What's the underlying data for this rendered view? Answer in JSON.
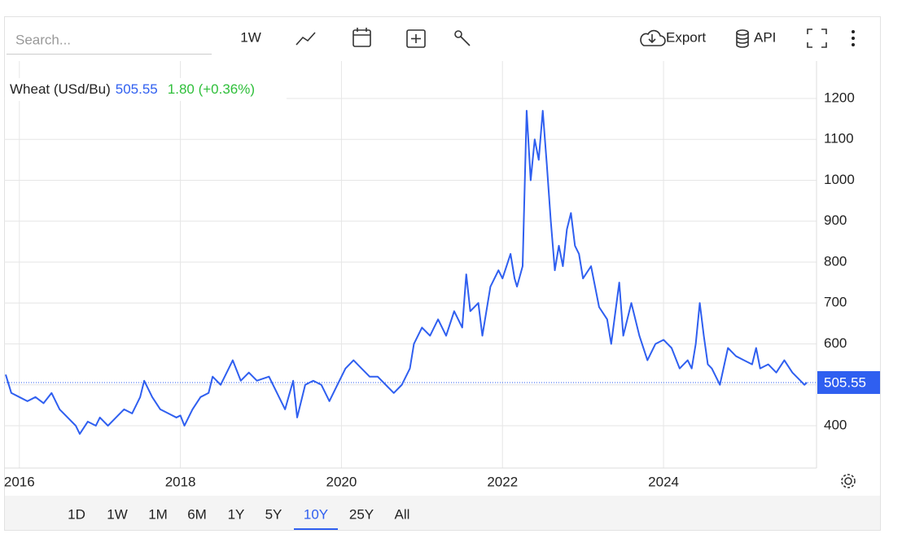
{
  "toolbar": {
    "search_placeholder": "Search...",
    "interval": "1W",
    "export": "Export",
    "api": "API"
  },
  "range_buttons": [
    "1D",
    "1W",
    "1M",
    "6M",
    "1Y",
    "5Y",
    "10Y",
    "25Y",
    "All"
  ],
  "active_range": "10Y",
  "chart_data": {
    "type": "line",
    "last_value": 505.55,
    "change_label": "1.80 (+0.36%)",
    "change_color": "#2fbf3a",
    "x": [
      2015.83,
      2015.9,
      2016.0,
      2016.1,
      2016.2,
      2016.3,
      2016.4,
      2016.5,
      2016.6,
      2016.7,
      2016.75,
      2016.85,
      2016.95,
      2017.0,
      2017.1,
      2017.2,
      2017.3,
      2017.4,
      2017.5,
      2017.55,
      2017.65,
      2017.75,
      2017.85,
      2017.95,
      2018.0,
      2018.05,
      2018.15,
      2018.25,
      2018.35,
      2018.4,
      2018.5,
      2018.6,
      2018.65,
      2018.75,
      2018.85,
      2018.95,
      2019.1,
      2019.2,
      2019.3,
      2019.4,
      2019.45,
      2019.55,
      2019.65,
      2019.75,
      2019.85,
      2019.95,
      2020.05,
      2020.15,
      2020.25,
      2020.35,
      2020.45,
      2020.55,
      2020.65,
      2020.75,
      2020.85,
      2020.9,
      2021.0,
      2021.1,
      2021.2,
      2021.3,
      2021.4,
      2021.5,
      2021.55,
      2021.6,
      2021.7,
      2021.75,
      2021.85,
      2021.95,
      2022.0,
      2022.1,
      2022.15,
      2022.18,
      2022.25,
      2022.3,
      2022.35,
      2022.4,
      2022.45,
      2022.5,
      2022.55,
      2022.6,
      2022.65,
      2022.7,
      2022.75,
      2022.8,
      2022.85,
      2022.9,
      2022.95,
      2023.0,
      2023.1,
      2023.2,
      2023.3,
      2023.35,
      2023.45,
      2023.5,
      2023.6,
      2023.7,
      2023.8,
      2023.9,
      2024.0,
      2024.1,
      2024.2,
      2024.3,
      2024.35,
      2024.4,
      2024.45,
      2024.5,
      2024.55,
      2024.6,
      2024.65,
      2024.7,
      2024.8,
      2024.9,
      2025.0,
      2025.1,
      2025.15,
      2025.2,
      2025.3,
      2025.4,
      2025.5,
      2025.6,
      2025.7,
      2025.75,
      2025.78
    ],
    "series": [
      {
        "name": "Wheat (USd/Bu)",
        "color": "#2f5ff0",
        "values": [
          525,
          480,
          470,
          460,
          470,
          455,
          480,
          440,
          420,
          400,
          380,
          410,
          400,
          420,
          400,
          420,
          440,
          430,
          470,
          510,
          470,
          440,
          430,
          420,
          425,
          400,
          440,
          470,
          480,
          520,
          500,
          540,
          560,
          510,
          530,
          510,
          520,
          480,
          440,
          510,
          420,
          500,
          510,
          500,
          460,
          500,
          540,
          560,
          540,
          520,
          520,
          500,
          480,
          500,
          540,
          600,
          640,
          620,
          660,
          620,
          680,
          640,
          770,
          680,
          700,
          620,
          740,
          780,
          760,
          820,
          760,
          740,
          790,
          1170,
          1000,
          1100,
          1050,
          1170,
          1040,
          900,
          780,
          840,
          790,
          880,
          920,
          840,
          820,
          760,
          790,
          690,
          660,
          600,
          750,
          620,
          700,
          620,
          560,
          600,
          610,
          590,
          540,
          560,
          540,
          600,
          700,
          620,
          550,
          540,
          520,
          500,
          590,
          570,
          560,
          550,
          590,
          540,
          550,
          530,
          560,
          530,
          510,
          500,
          505.55
        ]
      }
    ],
    "xlim": [
      2015.81,
      2025.9
    ],
    "ylim": [
      296.5,
      1291.5
    ],
    "xticks": [
      2016,
      2018,
      2020,
      2022,
      2024
    ],
    "yticks": [
      400,
      500,
      600,
      700,
      800,
      900,
      1000,
      1100,
      1200
    ],
    "grid": true
  }
}
